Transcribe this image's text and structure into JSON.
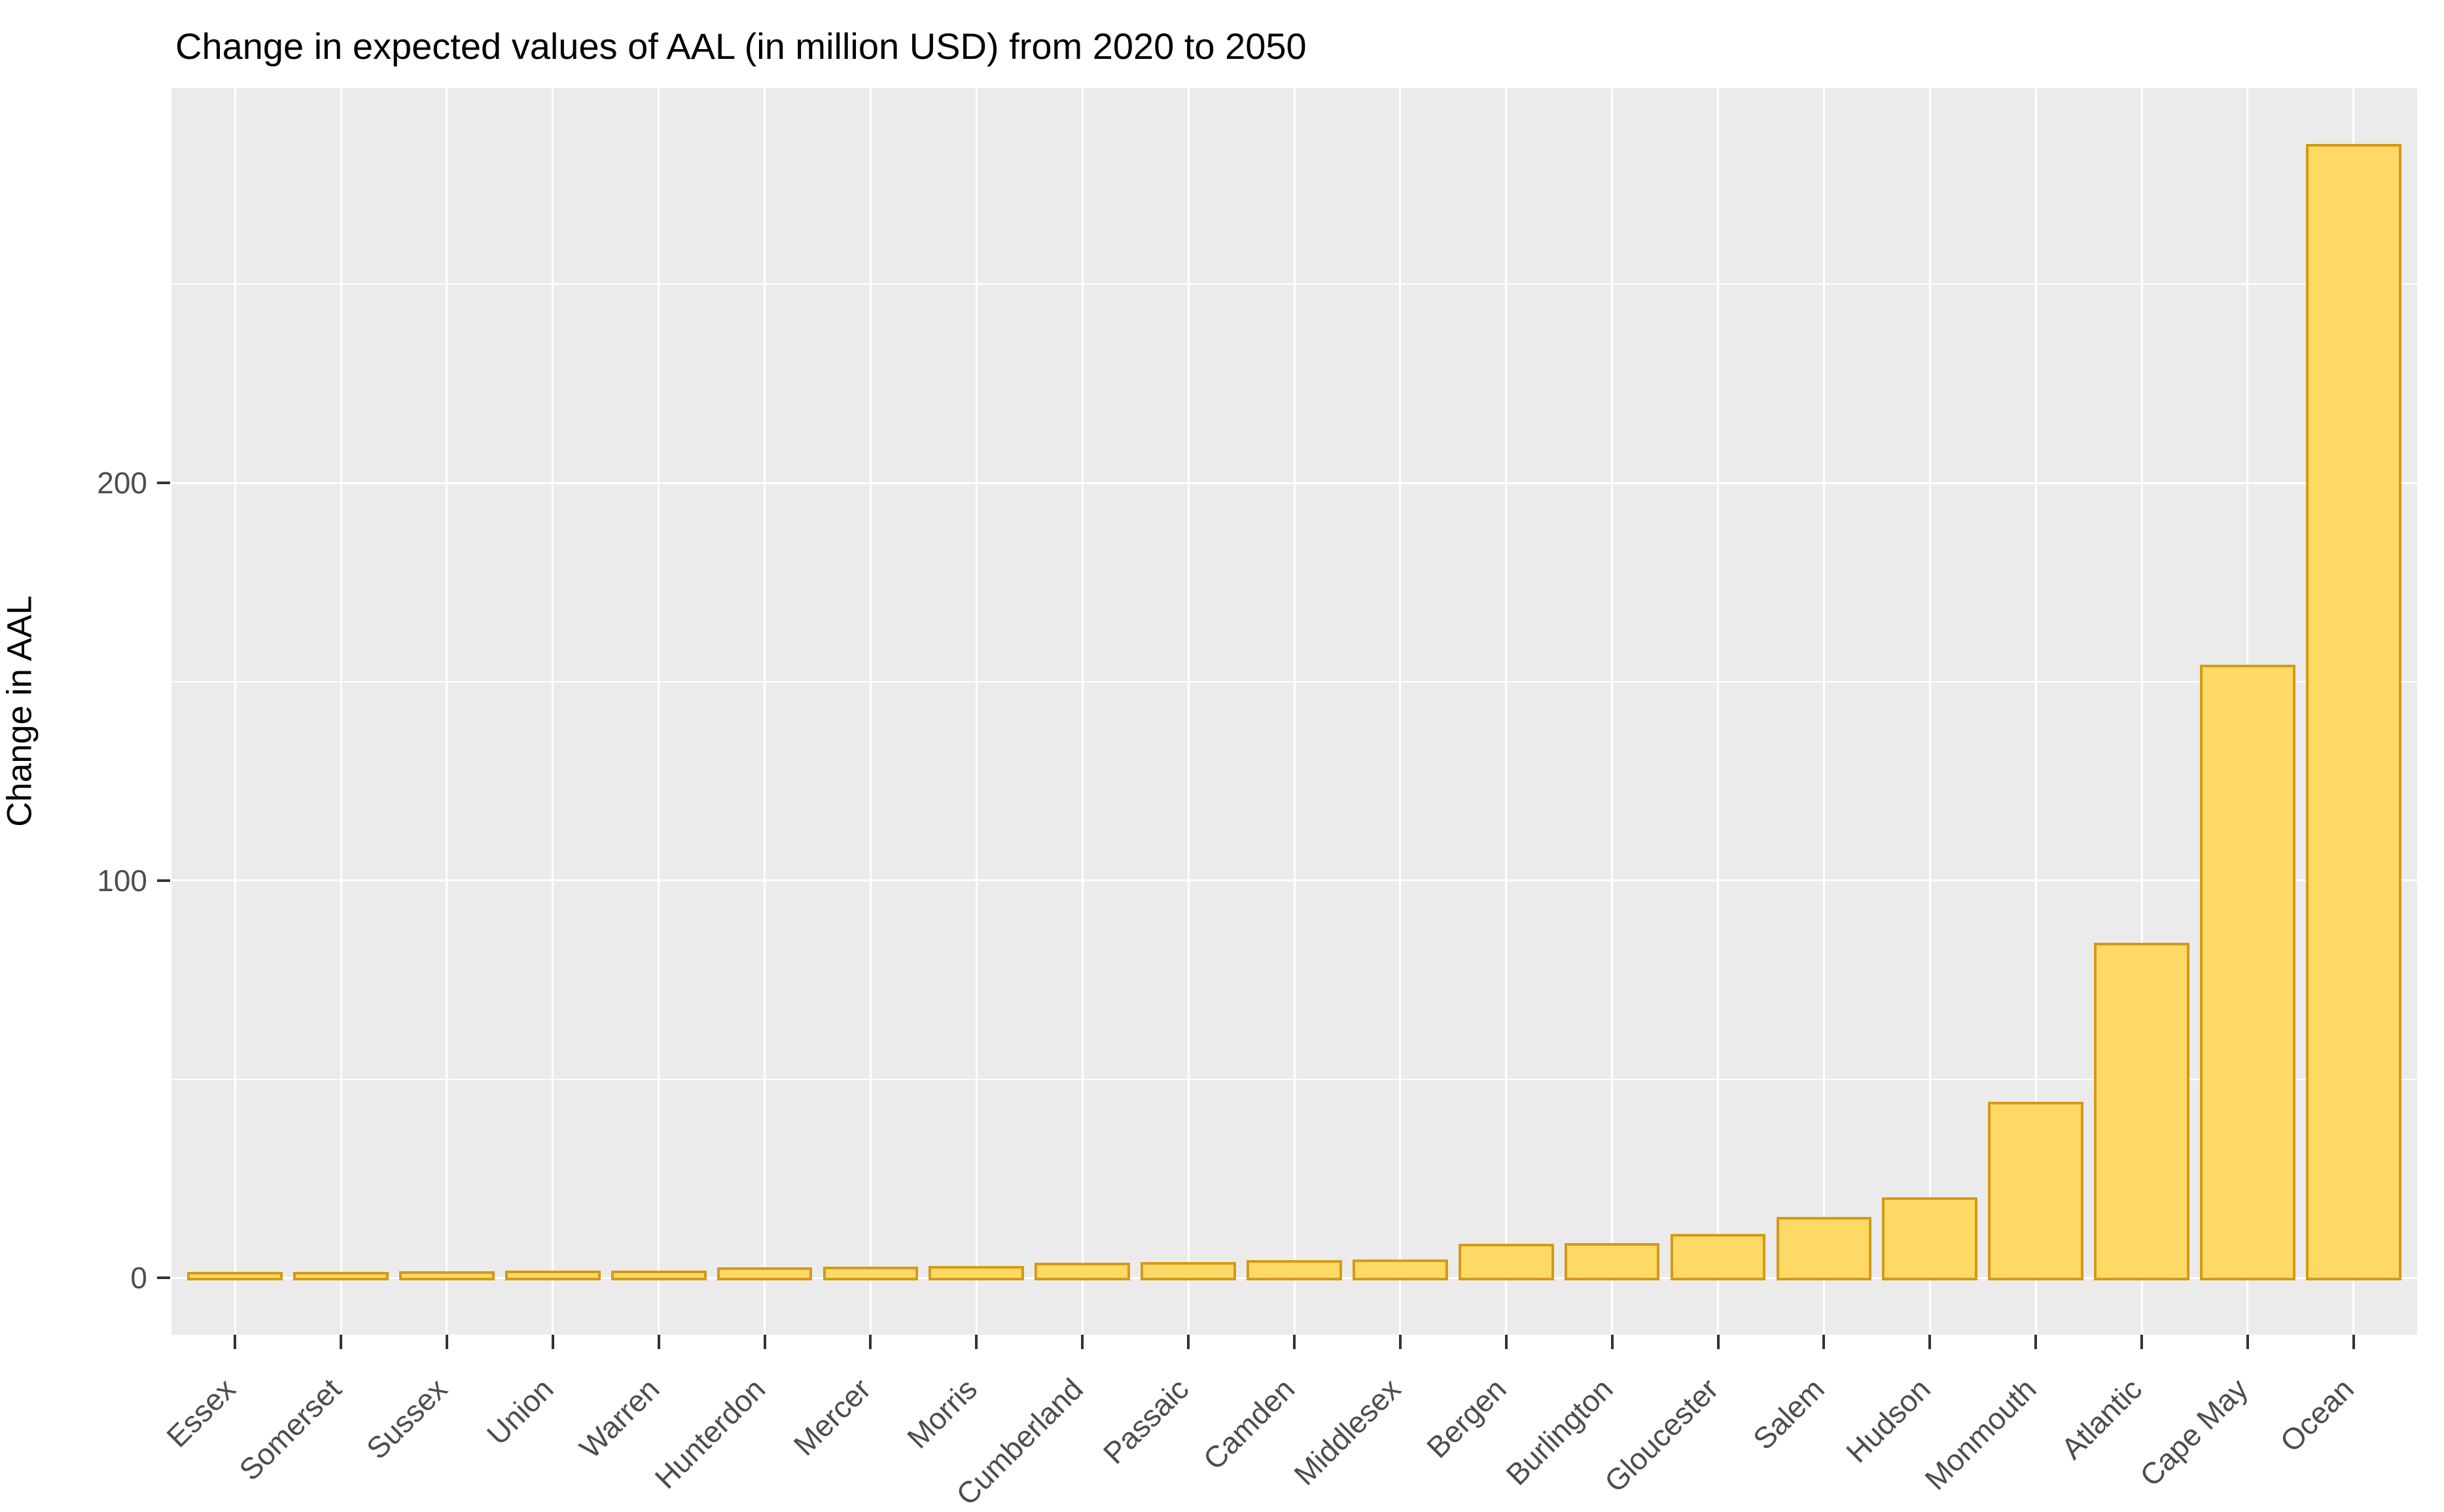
{
  "title": "Change in expected values of AAL (in million USD) from 2020 to 2050",
  "chart_data": {
    "type": "bar",
    "title": "Change in expected values of AAL (in million USD) from 2020 to 2050",
    "xlabel": "",
    "ylabel": "Change in AAL",
    "categories": [
      "Essex",
      "Somerset",
      "Sussex",
      "Union",
      "Warren",
      "Hunterdon",
      "Mercer",
      "Morris",
      "Cumberland",
      "Passaic",
      "Camden",
      "Middlesex",
      "Bergen",
      "Burlington",
      "Gloucester",
      "Salem",
      "Hudson",
      "Monmouth",
      "Atlantic",
      "Cape May",
      "Ocean"
    ],
    "values": [
      1.2,
      1.3,
      1.4,
      1.5,
      1.6,
      2.4,
      2.5,
      2.7,
      3.6,
      3.7,
      4.2,
      4.4,
      8.3,
      8.5,
      10.8,
      15,
      20,
      44,
      84,
      154,
      285
    ],
    "y_ticks": [
      0,
      100,
      200
    ],
    "y_minor_ticks": [
      50,
      150,
      250
    ],
    "ylim": [
      -14.25,
      299.25
    ],
    "grid": true,
    "legend": false,
    "sorted": "ascending",
    "bar_width_frac": 0.9,
    "category_expand": 0.6,
    "colors": {
      "bar_fill": "#FFD966",
      "bar_stroke": "#D49A15",
      "panel_bg": "#EBEBEB",
      "grid": "#FFFFFF",
      "tick_label": "#4D4D4D",
      "tick_mark": "#333333",
      "title_text": "#000000",
      "axis_title_text": "#000000",
      "figure_bg": "#FFFFFF"
    }
  }
}
